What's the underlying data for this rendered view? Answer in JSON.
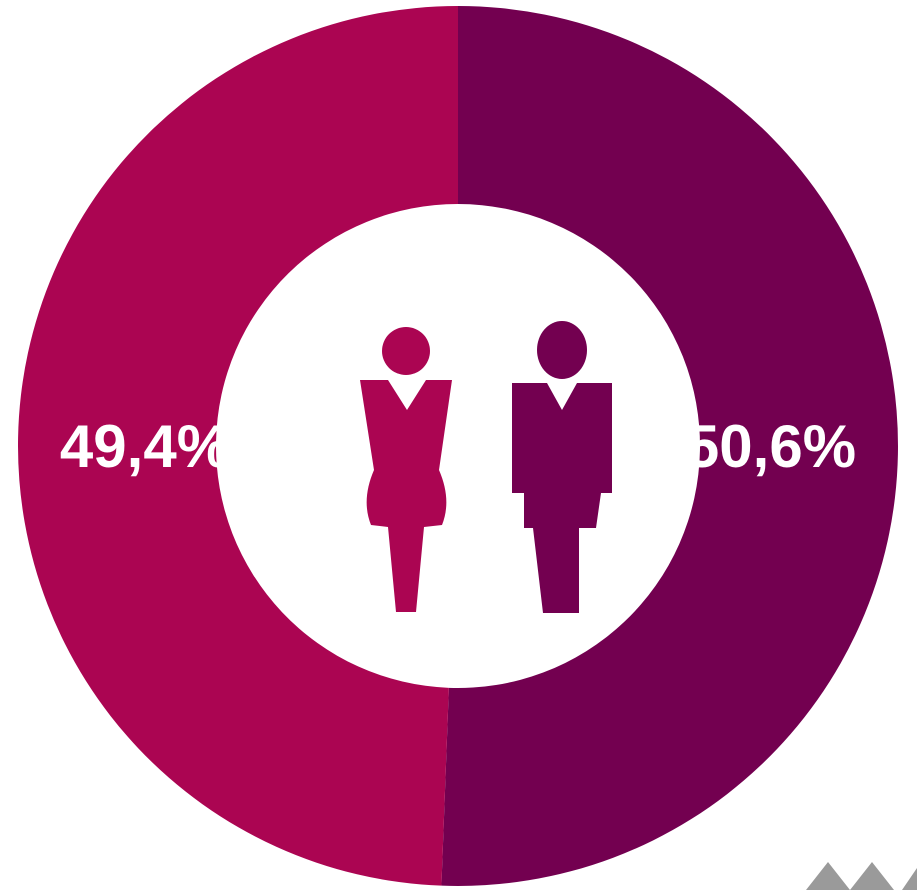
{
  "chart_data": {
    "type": "pie",
    "style": "donut",
    "categories": [
      "women",
      "men"
    ],
    "values": [
      49.4,
      50.6
    ],
    "value_labels": [
      "49,4%",
      "50,6%"
    ],
    "colors": [
      "#ab0552",
      "#730050"
    ],
    "icons": [
      "woman-icon",
      "man-icon"
    ],
    "title": "",
    "legend": "none"
  },
  "logo": {
    "icon": "brand-logo-icon",
    "color": "#9a9a9a"
  }
}
